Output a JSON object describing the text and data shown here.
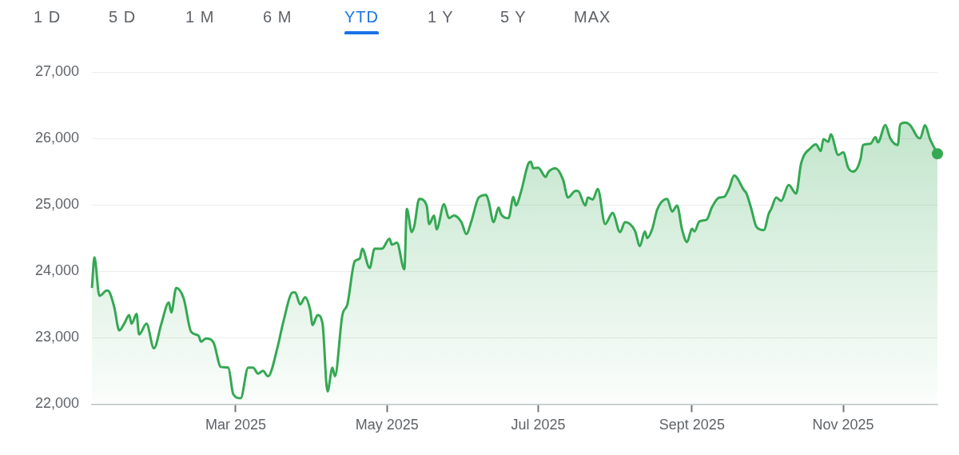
{
  "chart_data": {
    "type": "area",
    "annotations": [
      "1 D",
      "5 D",
      "1 M",
      "6 M",
      "YTD",
      "1 Y",
      "5 Y",
      "MAX"
    ],
    "x": [
      "2025-01-02",
      "2025-01-03",
      "2025-01-05",
      "2025-01-08",
      "2025-01-09",
      "2025-01-11",
      "2025-01-13",
      "2025-01-15",
      "2025-01-17",
      "2025-01-18",
      "2025-01-20",
      "2025-01-21",
      "2025-01-24",
      "2025-01-27",
      "2025-01-30",
      "2025-02-02",
      "2025-02-03",
      "2025-02-05",
      "2025-02-08",
      "2025-02-11",
      "2025-02-14",
      "2025-02-15",
      "2025-02-17",
      "2025-02-20",
      "2025-02-23",
      "2025-02-26",
      "2025-02-28",
      "2025-03-03",
      "2025-03-06",
      "2025-03-08",
      "2025-03-10",
      "2025-03-12",
      "2025-03-14",
      "2025-03-18",
      "2025-03-20",
      "2025-03-24",
      "2025-03-25",
      "2025-03-27",
      "2025-03-29",
      "2025-03-31",
      "2025-04-01",
      "2025-04-03",
      "2025-04-05",
      "2025-04-07",
      "2025-04-09",
      "2025-04-10",
      "2025-04-13",
      "2025-04-15",
      "2025-04-18",
      "2025-04-20",
      "2025-04-21",
      "2025-04-24",
      "2025-04-26",
      "2025-04-29",
      "2025-05-02",
      "2025-05-03",
      "2025-05-05",
      "2025-05-08",
      "2025-05-09",
      "2025-05-11",
      "2025-05-12",
      "2025-05-14",
      "2025-05-17",
      "2025-05-18",
      "2025-05-20",
      "2025-05-21",
      "2025-05-24",
      "2025-05-26",
      "2025-05-28",
      "2025-05-31",
      "2025-06-02",
      "2025-06-04",
      "2025-06-07",
      "2025-06-10",
      "2025-06-11",
      "2025-06-13",
      "2025-06-15",
      "2025-06-16",
      "2025-06-19",
      "2025-06-21",
      "2025-06-22",
      "2025-06-24",
      "2025-06-27",
      "2025-06-28",
      "2025-06-29",
      "2025-07-01",
      "2025-07-04",
      "2025-07-05",
      "2025-07-08",
      "2025-07-11",
      "2025-07-13",
      "2025-07-16",
      "2025-07-17",
      "2025-07-20",
      "2025-07-21",
      "2025-07-23",
      "2025-07-25",
      "2025-07-28",
      "2025-07-31",
      "2025-08-03",
      "2025-08-05",
      "2025-08-09",
      "2025-08-11",
      "2025-08-13",
      "2025-08-14",
      "2025-08-16",
      "2025-08-18",
      "2025-08-22",
      "2025-08-24",
      "2025-08-26",
      "2025-08-28",
      "2025-08-30",
      "2025-09-01",
      "2025-09-02",
      "2025-09-04",
      "2025-09-07",
      "2025-09-09",
      "2025-09-12",
      "2025-09-14",
      "2025-09-16",
      "2025-09-18",
      "2025-09-22",
      "2025-09-23",
      "2025-09-25",
      "2025-09-27",
      "2025-09-30",
      "2025-10-02",
      "2025-10-03",
      "2025-10-05",
      "2025-10-07",
      "2025-10-10",
      "2025-10-13",
      "2025-10-15",
      "2025-10-19",
      "2025-10-21",
      "2025-10-23",
      "2025-10-24",
      "2025-10-26",
      "2025-10-27",
      "2025-10-30",
      "2025-11-01",
      "2025-11-03",
      "2025-11-05",
      "2025-11-08",
      "2025-11-09",
      "2025-11-12",
      "2025-11-14",
      "2025-11-15",
      "2025-11-18",
      "2025-11-20",
      "2025-11-23",
      "2025-11-24",
      "2025-11-26",
      "2025-11-28",
      "2025-12-01",
      "2025-12-02",
      "2025-12-04",
      "2025-12-06",
      "2025-12-09"
    ],
    "series": [
      {
        "color": "#34a853",
        "values": [
          23750,
          24210,
          23630,
          23710,
          23690,
          23460,
          23110,
          23210,
          23340,
          23210,
          23360,
          23050,
          23210,
          22840,
          23210,
          23530,
          23380,
          23750,
          23590,
          23090,
          23030,
          22940,
          22990,
          22930,
          22560,
          22550,
          22150,
          22090,
          22550,
          22550,
          22460,
          22500,
          22420,
          22880,
          23210,
          23680,
          23680,
          23500,
          23610,
          23420,
          23190,
          23340,
          23210,
          22190,
          22550,
          22420,
          23340,
          23500,
          24150,
          24190,
          24340,
          24050,
          24340,
          24340,
          24490,
          24400,
          24430,
          24030,
          24940,
          24590,
          24680,
          25090,
          24990,
          24710,
          24840,
          24630,
          25010,
          24800,
          24840,
          24740,
          24560,
          24750,
          25110,
          25150,
          25050,
          24740,
          24960,
          24860,
          24800,
          25120,
          24990,
          25190,
          25620,
          25650,
          25550,
          25560,
          25420,
          25490,
          25550,
          25380,
          25110,
          25210,
          25210,
          24990,
          25110,
          25080,
          25240,
          24710,
          24880,
          24590,
          24740,
          24610,
          24380,
          24600,
          24500,
          24640,
          24930,
          25090,
          24900,
          24990,
          24630,
          24440,
          24640,
          24600,
          24750,
          24780,
          24960,
          25110,
          25120,
          25250,
          25440,
          25220,
          25170,
          24930,
          24670,
          24620,
          24870,
          24940,
          25110,
          25060,
          25300,
          25170,
          25620,
          25860,
          25910,
          25810,
          25990,
          25950,
          26060,
          25750,
          25790,
          25560,
          25500,
          25690,
          25900,
          25920,
          26020,
          25940,
          26200,
          26000,
          25900,
          26210,
          26240,
          26200,
          26020,
          26000,
          26200,
          25990,
          25770
        ]
      }
    ],
    "xlim": [
      "2025-01-02",
      "2025-12-09"
    ],
    "xticks": [
      {
        "value": "2025-03-01",
        "label": "Mar 2025"
      },
      {
        "value": "2025-05-01",
        "label": "May 2025"
      },
      {
        "value": "2025-07-01",
        "label": "Jul 2025"
      },
      {
        "value": "2025-09-01",
        "label": "Sept 2025"
      },
      {
        "value": "2025-11-01",
        "label": "Nov 2025"
      }
    ],
    "ylim": [
      22000,
      27000
    ],
    "yticks": [
      {
        "value": 22000,
        "label": "22,000"
      },
      {
        "value": 23000,
        "label": "23,000"
      },
      {
        "value": 24000,
        "label": "24,000"
      },
      {
        "value": 25000,
        "label": "25,000"
      },
      {
        "value": 26000,
        "label": "26,000"
      },
      {
        "value": 27000,
        "label": "27,000"
      }
    ],
    "grid": "y",
    "legend": false
  }
}
